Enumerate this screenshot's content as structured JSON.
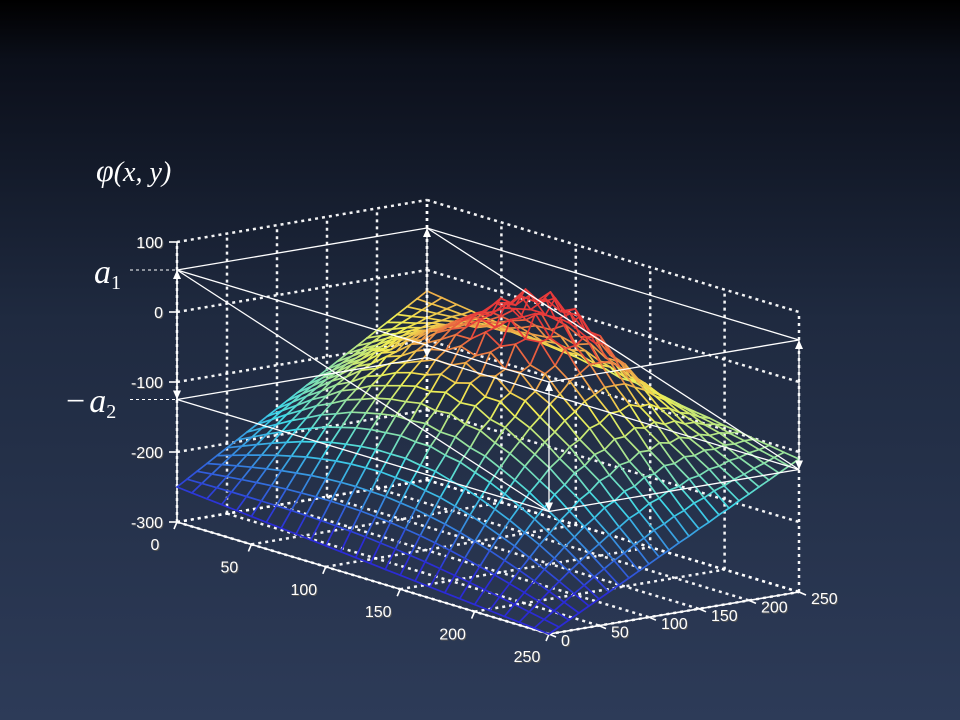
{
  "annotations": {
    "phi_symbol": "φ",
    "phi_args": "(x, y)",
    "a1_letter": "a",
    "a1_sub": "1",
    "a2_minus": "−",
    "a2_letter": "a",
    "a2_sub": "2"
  },
  "chart_data": {
    "type": "surface",
    "title": "",
    "xlabel": "",
    "ylabel": "",
    "zlabel": "",
    "xlim": [
      0,
      250
    ],
    "ylim": [
      0,
      250
    ],
    "zlim": [
      -300,
      100
    ],
    "x_ticks": [
      "0",
      "50",
      "100",
      "150",
      "200",
      "250"
    ],
    "y_ticks": [
      "0",
      "50",
      "100",
      "150",
      "200",
      "250"
    ],
    "z_ticks": [
      "-300",
      "-200",
      "-100",
      "0",
      "100"
    ],
    "grid": true,
    "colormap": [
      "#2b2bd6",
      "#3fd8e8",
      "#f2ee52",
      "#e83a3a"
    ],
    "levels": {
      "a1": 60,
      "minus_a2": -125
    },
    "surface_samples": {
      "corner_x0_y0": -250,
      "corner_x250_y0": -300,
      "corner_x250_y250": -110,
      "corner_x0_y250": -30,
      "central_peak_xy": [
        130,
        170
      ],
      "central_peak_z": 55
    }
  }
}
